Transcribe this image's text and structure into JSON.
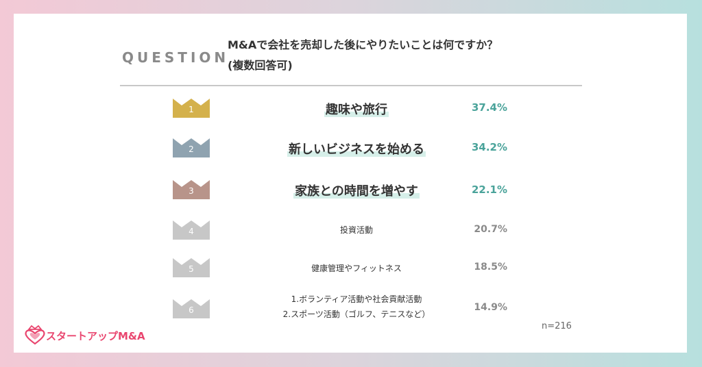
{
  "question_label": "QUESTION",
  "question_line1": "M&Aで会社を売却した後にやりたいことは何ですか？",
  "question_line2": "(複数回答可)",
  "colors": {
    "gold": "#d4b14c",
    "blue": "#8fa3b0",
    "bronze": "#b8948a",
    "gray": "#c7c7c7",
    "accent": "#4aa39a",
    "brand": "#e9466f"
  },
  "ranks": [
    {
      "rank": "1",
      "item": "趣味や旅行",
      "percent": "37.4%",
      "crown_color": "gold"
    },
    {
      "rank": "2",
      "item": "新しいビジネスを始める",
      "percent": "34.2%",
      "crown_color": "blue"
    },
    {
      "rank": "3",
      "item": "家族との時間を増やす",
      "percent": "22.1%",
      "crown_color": "bronze"
    },
    {
      "rank": "4",
      "item": "投資活動",
      "percent": "20.7%",
      "crown_color": "gray"
    },
    {
      "rank": "5",
      "item": "健康管理やフィットネス",
      "percent": "18.5%",
      "crown_color": "gray"
    },
    {
      "rank": "6",
      "item_line1": "1.ボランティア活動や社会貢献活動",
      "item_line2": "2.スポーツ活動（ゴルフ、テニスなど）",
      "percent": "14.9%",
      "crown_color": "gray"
    }
  ],
  "sample_size": "n=216",
  "brand_name": "スタートアップM&A",
  "brand_icon": "heart-crown-icon"
}
